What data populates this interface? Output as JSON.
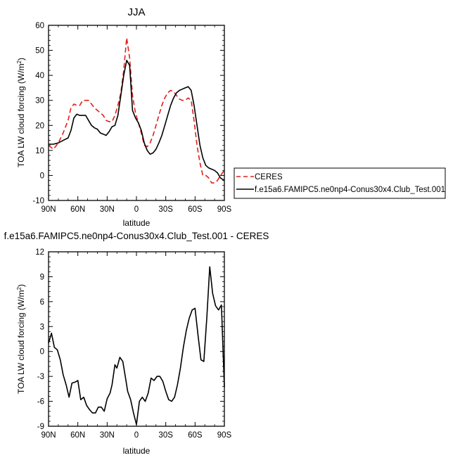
{
  "chart_data": [
    {
      "type": "line",
      "title": "JJA",
      "xlabel": "latitude",
      "ylabel": "TOA LW cloud forcing (W/m",
      "ylabel_sup": "2",
      "ylabel_end": ")",
      "xlim": [
        90,
        -90
      ],
      "ylim": [
        -10,
        60
      ],
      "x_ticks": [
        90,
        60,
        30,
        0,
        -30,
        -60,
        -90
      ],
      "x_tick_labels": [
        "90N",
        "60N",
        "30N",
        "0",
        "30S",
        "60S",
        "90S"
      ],
      "y_ticks": [
        -10,
        0,
        10,
        20,
        30,
        40,
        50,
        60
      ],
      "y_tick_labels": [
        "-10",
        "0",
        "10",
        "20",
        "30",
        "40",
        "50",
        "60"
      ],
      "legend": "outside-right",
      "series": [
        {
          "name": "CERES",
          "color": "#e0201b",
          "dash": "dashed",
          "x": [
            90,
            85,
            80,
            75,
            70,
            67,
            64,
            61,
            58,
            55,
            52,
            49,
            46,
            43,
            40,
            37,
            34,
            31,
            28,
            25,
            22,
            19,
            16,
            13,
            10,
            7,
            4,
            1,
            -2,
            -5,
            -8,
            -11,
            -14,
            -17,
            -20,
            -23,
            -26,
            -29,
            -32,
            -35,
            -38,
            -41,
            -44,
            -47,
            -50,
            -53,
            -56,
            -59,
            -62,
            -65,
            -68,
            -71,
            -74,
            -77,
            -80,
            -83,
            -86,
            -90
          ],
          "y": [
            12,
            10.5,
            13,
            17,
            22,
            27,
            28.5,
            28,
            28,
            30,
            30,
            30,
            28.5,
            27,
            26,
            25,
            24,
            22,
            21.5,
            21.5,
            24,
            28,
            33,
            42,
            55,
            47,
            32,
            25,
            21,
            17,
            12,
            11.5,
            13,
            16,
            20,
            24,
            28,
            31,
            33,
            34,
            33.5,
            32,
            30.5,
            30,
            30,
            31,
            30,
            22,
            12,
            5,
            0,
            0,
            -1,
            -3,
            -3,
            -2,
            0,
            2
          ]
        },
        {
          "name": "f.e15a6.FAMIPC5.ne0np4-Conus30x4.Club_Test.001",
          "color": "#000000",
          "dash": "solid",
          "x": [
            90,
            85,
            80,
            75,
            70,
            67,
            64,
            61,
            58,
            55,
            52,
            49,
            46,
            43,
            40,
            37,
            34,
            31,
            28,
            25,
            22,
            19,
            16,
            13,
            10,
            7,
            4,
            1,
            -2,
            -5,
            -8,
            -11,
            -14,
            -17,
            -20,
            -23,
            -26,
            -29,
            -32,
            -35,
            -38,
            -41,
            -44,
            -47,
            -50,
            -53,
            -56,
            -59,
            -62,
            -65,
            -68,
            -71,
            -74,
            -77,
            -80,
            -83,
            -86,
            -90
          ],
          "y": [
            12.5,
            12.5,
            13,
            14,
            15,
            18,
            23,
            24.5,
            24,
            24,
            24,
            22,
            20,
            19,
            18.5,
            17,
            16.5,
            16,
            17.5,
            19.5,
            20,
            24,
            32,
            40,
            46,
            44,
            26,
            23,
            21,
            18,
            13,
            10,
            8.5,
            9,
            10.5,
            13,
            16,
            20,
            24,
            28,
            31,
            33,
            34,
            34.5,
            35,
            35.5,
            34,
            28,
            20,
            12,
            7,
            4,
            3,
            2.5,
            2,
            1,
            -1,
            -2
          ]
        }
      ]
    },
    {
      "type": "line",
      "title": "f.e15a6.FAMIPC5.ne0np4-Conus30x4.Club_Test.001 - CERES",
      "xlabel": "latitude",
      "ylabel": "TOA LW cloud forcing (W/m",
      "ylabel_sup": "2",
      "ylabel_end": ")",
      "xlim": [
        90,
        -90
      ],
      "ylim": [
        -9,
        12
      ],
      "x_ticks": [
        90,
        60,
        30,
        0,
        -30,
        -60,
        -90
      ],
      "x_tick_labels": [
        "90N",
        "60N",
        "30N",
        "0",
        "30S",
        "60S",
        "90S"
      ],
      "y_ticks": [
        -9,
        -6,
        -3,
        0,
        3,
        6,
        9,
        12
      ],
      "y_tick_labels": [
        "-9",
        "-6",
        "-3",
        "0",
        "3",
        "6",
        "9",
        "12"
      ],
      "series": [
        {
          "color": "#000000",
          "dash": "solid",
          "x": [
            90,
            87,
            84,
            81,
            78,
            75,
            72,
            69,
            66,
            63,
            60,
            57,
            54,
            51,
            48,
            45,
            42,
            39,
            36,
            33,
            30,
            27,
            25,
            22,
            20,
            17,
            14,
            11,
            9,
            6,
            3,
            0,
            -3,
            -6,
            -9,
            -12,
            -15,
            -18,
            -21,
            -24,
            -27,
            -30,
            -33,
            -36,
            -39,
            -42,
            -45,
            -48,
            -51,
            -54,
            -57,
            -60,
            -63,
            -66,
            -69,
            -72,
            -75,
            -78,
            -81,
            -84,
            -87,
            -90
          ],
          "y": [
            1,
            2.2,
            0.5,
            0.2,
            -1,
            -2.8,
            -4,
            -5.5,
            -3.8,
            -3.7,
            -3.5,
            -5.8,
            -5.5,
            -6.5,
            -7,
            -7.4,
            -7.4,
            -6.7,
            -6.7,
            -7.2,
            -5.7,
            -5,
            -4,
            -1.6,
            -2,
            -0.7,
            -1.2,
            -3.3,
            -4.8,
            -5.8,
            -7.4,
            -8.8,
            -6,
            -5.5,
            -6,
            -5,
            -3.2,
            -3.5,
            -3,
            -3,
            -3.6,
            -4.8,
            -5.8,
            -6,
            -5.5,
            -4,
            -2,
            0.5,
            2.5,
            4,
            5,
            5.2,
            2,
            -1,
            -1.2,
            4,
            10.2,
            7,
            5.5,
            5,
            5.6,
            -4.3
          ]
        }
      ]
    }
  ]
}
